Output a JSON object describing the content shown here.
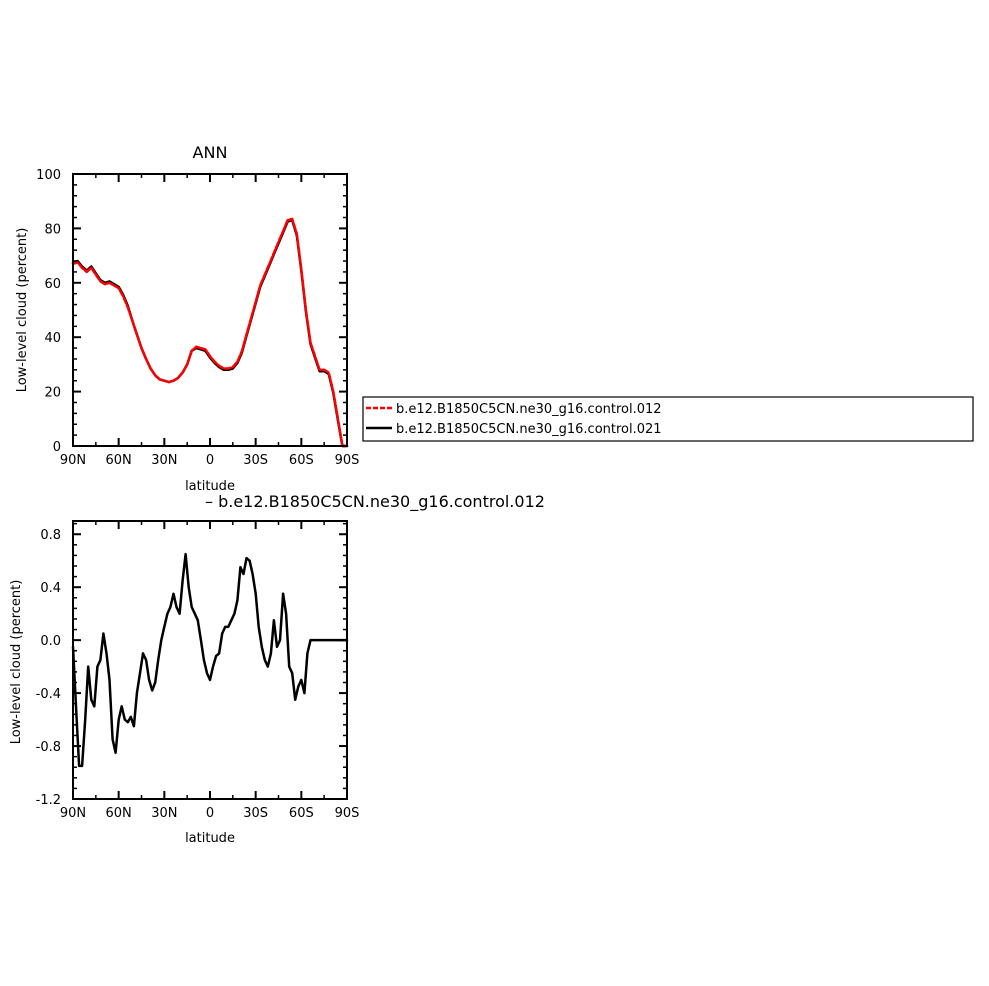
{
  "chart_data": [
    {
      "type": "line",
      "title": "ANN",
      "xlabel": "latitude",
      "ylabel": "Low-level cloud (percent)",
      "xlim": [
        -90,
        90
      ],
      "ylim": [
        0,
        100
      ],
      "xticks": [
        -90,
        -60,
        -30,
        0,
        30,
        60,
        90
      ],
      "xtick_labels": [
        "90N",
        "60N",
        "30N",
        "0",
        "30S",
        "60S",
        "90S"
      ],
      "yticks": [
        0,
        20,
        40,
        60,
        80,
        100
      ],
      "ytick_labels": [
        "0",
        "20",
        "40",
        "60",
        "80",
        "100"
      ],
      "grid": false,
      "legend_position": "right",
      "x": [
        -90,
        -87,
        -84,
        -81,
        -78,
        -75,
        -72,
        -69,
        -66,
        -63,
        -60,
        -57,
        -54,
        -51,
        -48,
        -45,
        -42,
        -39,
        -36,
        -33,
        -30,
        -27,
        -24,
        -21,
        -18,
        -15,
        -12,
        -9,
        -6,
        -3,
        0,
        3,
        6,
        9,
        12,
        15,
        18,
        21,
        24,
        27,
        30,
        33,
        36,
        39,
        42,
        45,
        48,
        51,
        54,
        57,
        60,
        63,
        66,
        69,
        72,
        75,
        78,
        81,
        84,
        87,
        90
      ],
      "series": [
        {
          "name": "b.e12.B1850C5CN.ne30_g16.control.012",
          "color": "#ff0000",
          "dash": true,
          "values": [
            67,
            67.5,
            65.5,
            64,
            65.5,
            63,
            60.5,
            59.5,
            60,
            59,
            58,
            55,
            51,
            46,
            41,
            36,
            32,
            28.5,
            26,
            24.5,
            24,
            23.5,
            24,
            25,
            27,
            30,
            35,
            36.5,
            36,
            35.5,
            33,
            31,
            29.5,
            28.5,
            28.5,
            29,
            31,
            35,
            41,
            47,
            53,
            59,
            63,
            67,
            71,
            75,
            79,
            83,
            83.5,
            78,
            65,
            50,
            38,
            33,
            28,
            28,
            27,
            20,
            10,
            0,
            0
          ]
        },
        {
          "name": "b.e12.B1850C5CN.ne30_g16.control.021",
          "color": "#000000",
          "dash": false,
          "values": [
            67.5,
            68,
            66,
            64.5,
            66,
            63.5,
            61,
            60,
            60.5,
            59.5,
            58.5,
            55.5,
            51.5,
            46,
            41,
            36,
            32,
            28.5,
            26,
            24.5,
            24,
            23.5,
            24,
            25,
            27,
            30,
            35,
            36,
            35.5,
            35,
            32.5,
            30.5,
            29,
            28,
            28,
            28.5,
            30.5,
            34.5,
            40.5,
            46.5,
            52.5,
            58.5,
            62.5,
            66.5,
            70.5,
            74.5,
            78.5,
            82.5,
            83,
            77.5,
            64.5,
            49.5,
            37.5,
            32.5,
            27.5,
            27.5,
            26.5,
            19.5,
            9.5,
            0,
            0
          ]
        }
      ]
    },
    {
      "type": "line",
      "title": "",
      "subtitle": "– b.e12.B1850C5CN.ne30_g16.control.012",
      "xlabel": "latitude",
      "ylabel": "Low-level cloud (percent)",
      "xlim": [
        -90,
        90
      ],
      "ylim": [
        -1.2,
        0.9
      ],
      "xticks": [
        -90,
        -60,
        -30,
        0,
        30,
        60,
        90
      ],
      "xtick_labels": [
        "90N",
        "60N",
        "30N",
        "0",
        "30S",
        "60S",
        "90S"
      ],
      "yticks": [
        -1.2,
        -0.8,
        -0.4,
        0.0,
        0.4,
        0.8
      ],
      "ytick_labels": [
        "-1.2",
        "-0.8",
        "-0.4",
        "0.0",
        "0.4",
        "0.8"
      ],
      "grid": false,
      "x": [
        -90,
        -88,
        -86,
        -84,
        -82,
        -80,
        -78,
        -76,
        -74,
        -72,
        -70,
        -68,
        -66,
        -64,
        -62,
        -60,
        -58,
        -56,
        -54,
        -52,
        -50,
        -48,
        -46,
        -44,
        -42,
        -40,
        -38,
        -36,
        -34,
        -32,
        -30,
        -28,
        -26,
        -24,
        -22,
        -20,
        -18,
        -16,
        -14,
        -12,
        -10,
        -8,
        -6,
        -4,
        -2,
        0,
        2,
        4,
        6,
        8,
        10,
        12,
        14,
        16,
        18,
        20,
        22,
        24,
        26,
        28,
        30,
        32,
        34,
        36,
        38,
        40,
        42,
        44,
        46,
        48,
        50,
        52,
        54,
        56,
        58,
        60,
        62,
        64,
        66,
        68,
        70,
        72,
        74,
        76,
        78,
        80,
        82,
        84,
        86,
        88,
        90
      ],
      "series": [
        {
          "name": "",
          "color": "#000000",
          "values": [
            -0.05,
            -0.5,
            -0.95,
            -0.95,
            -0.6,
            -0.2,
            -0.45,
            -0.5,
            -0.2,
            -0.15,
            0.05,
            -0.1,
            -0.3,
            -0.75,
            -0.85,
            -0.6,
            -0.5,
            -0.6,
            -0.62,
            -0.58,
            -0.65,
            -0.4,
            -0.25,
            -0.1,
            -0.15,
            -0.3,
            -0.38,
            -0.32,
            -0.15,
            0.0,
            0.1,
            0.2,
            0.25,
            0.35,
            0.25,
            0.2,
            0.45,
            0.65,
            0.4,
            0.25,
            0.2,
            0.15,
            0.0,
            -0.15,
            -0.25,
            -0.3,
            -0.2,
            -0.12,
            -0.1,
            0.05,
            0.1,
            0.1,
            0.15,
            0.2,
            0.3,
            0.55,
            0.5,
            0.62,
            0.6,
            0.5,
            0.35,
            0.1,
            -0.05,
            -0.15,
            -0.2,
            -0.1,
            0.15,
            -0.05,
            0.0,
            0.35,
            0.2,
            -0.2,
            -0.25,
            -0.45,
            -0.35,
            -0.3,
            -0.4,
            -0.1,
            0.0,
            0.0,
            0.0,
            0.0,
            0.0,
            0.0,
            0.0,
            0.0,
            0.0,
            0.0,
            0.0,
            0.0,
            0.0
          ]
        }
      ]
    }
  ]
}
